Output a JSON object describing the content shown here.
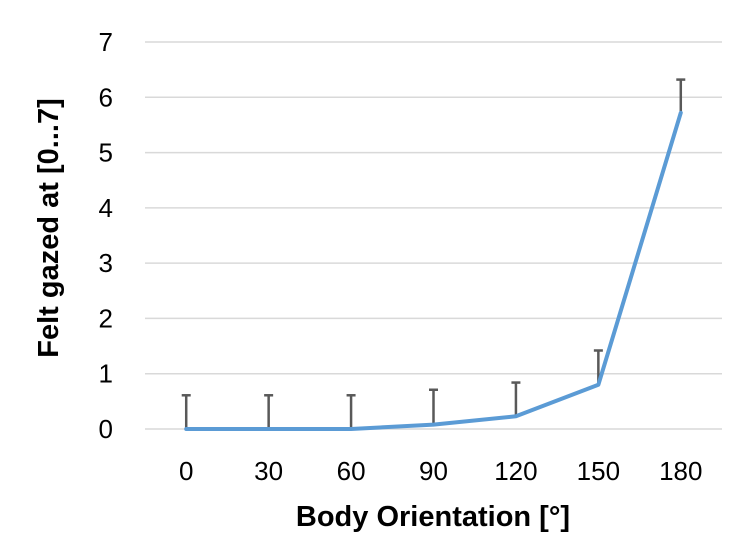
{
  "chart_data": {
    "type": "line",
    "title": "",
    "xlabel": "Body Orientation [°]",
    "ylabel": "Felt gazed at [0...7]",
    "categories": [
      "0",
      "30",
      "60",
      "90",
      "120",
      "150",
      "180"
    ],
    "series": [
      {
        "values": [
          0,
          0,
          0,
          0.08,
          0.23,
          0.8,
          5.72
        ],
        "error_upper": [
          0.61,
          0.61,
          0.61,
          0.63,
          0.61,
          0.62,
          0.6
        ],
        "color": "#5b9bd5"
      }
    ],
    "yticks": [
      "0",
      "1",
      "2",
      "3",
      "4",
      "5",
      "6",
      "7"
    ],
    "ylim": [
      0,
      7
    ],
    "grid": true,
    "legend": "none"
  }
}
